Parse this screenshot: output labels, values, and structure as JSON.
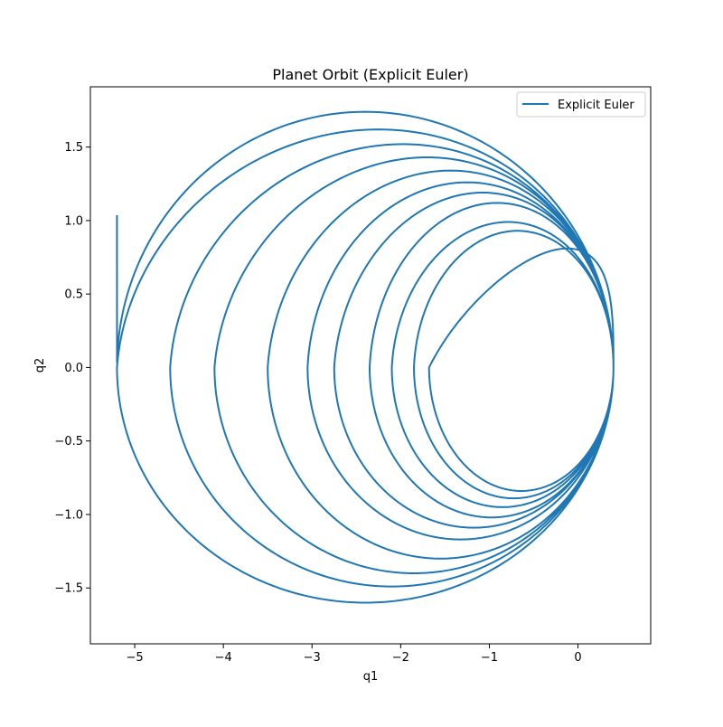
{
  "chart_data": {
    "type": "line",
    "title": "Planet Orbit (Explicit Euler)",
    "xlabel": "q1",
    "ylabel": "q2",
    "xlim": [
      -5.5,
      0.82
    ],
    "ylim": [
      -1.88,
      1.91
    ],
    "x_ticks": [
      -5,
      -4,
      -3,
      -2,
      -1,
      0
    ],
    "x_tick_labels": [
      "−5",
      "−4",
      "−3",
      "−2",
      "−1",
      "0"
    ],
    "y_ticks": [
      -1.5,
      -1.0,
      -0.5,
      0.0,
      0.5,
      1.0,
      1.5
    ],
    "y_tick_labels": [
      "−1.5",
      "−1.0",
      "−0.5",
      "0.0",
      "0.5",
      "1.0",
      "1.5"
    ],
    "grid": false,
    "legend": {
      "position": "top-right",
      "entries": [
        "Explicit Euler"
      ]
    },
    "series": [
      {
        "name": "Explicit Euler",
        "color": "#1f77b4",
        "orbit_model": {
          "description": "outward spiral of successive elliptical orbits, perihelion fixed near q1 = 0.4",
          "start_point": [
            0.4,
            0.0
          ],
          "end_point": [
            -5.2,
            1.03
          ],
          "orbit_leftmost_q1": [
            -1.68,
            -1.85,
            -2.1,
            -2.35,
            -2.75,
            -3.05,
            -3.5,
            -4.1,
            -4.6,
            -5.2
          ],
          "orbit_top_q2": [
            0.81,
            0.93,
            0.99,
            1.12,
            1.19,
            1.26,
            1.34,
            1.43,
            1.52,
            1.62,
            1.74
          ],
          "orbit_bottom_q2": [
            -0.84,
            -0.89,
            -0.95,
            -1.02,
            -1.09,
            -1.17,
            -1.3,
            -1.4,
            -1.49,
            -1.6,
            -1.71
          ]
        }
      }
    ]
  }
}
